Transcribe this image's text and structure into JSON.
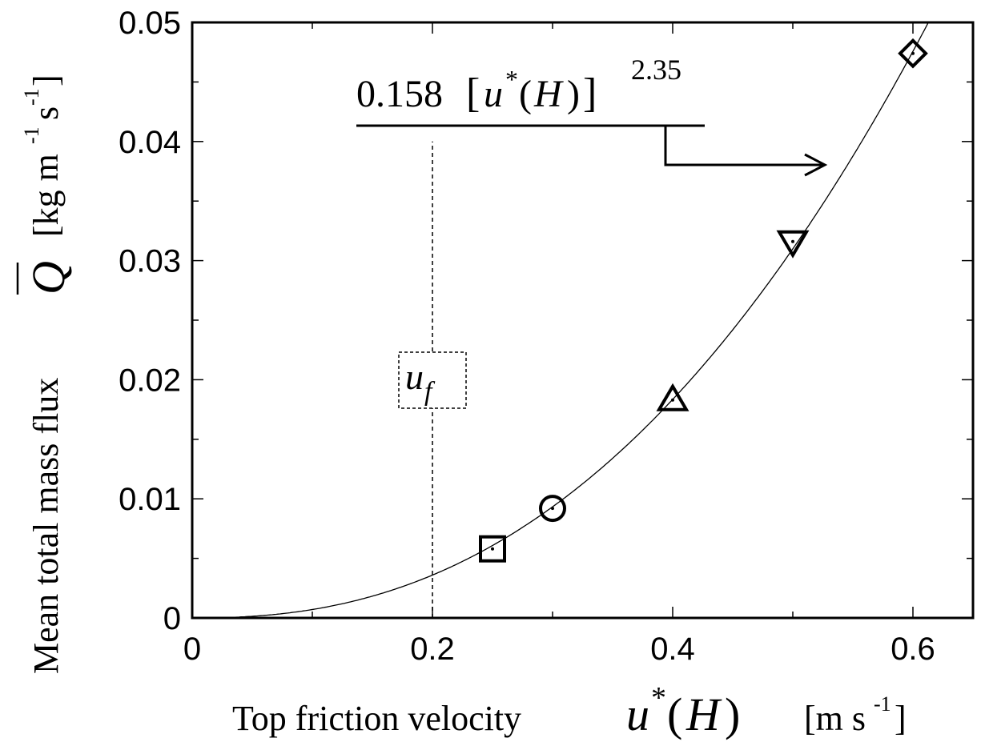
{
  "chart_data": {
    "type": "scatter",
    "xlabel": {
      "prefix": "Top friction velocity",
      "math": "u*(H)",
      "unit": "[m s-1]"
    },
    "ylabel": {
      "prefix": "Mean total mass flux",
      "math": "Q̄",
      "unit": "[kg m-1 s-1]"
    },
    "xlim": [
      0,
      0.65
    ],
    "ylim": [
      0,
      0.05
    ],
    "x_ticks": [
      0,
      0.2,
      0.4,
      0.6
    ],
    "x_tick_labels": [
      "0",
      "0.2",
      "0.4",
      "0.6"
    ],
    "y_ticks": [
      0,
      0.01,
      0.02,
      0.03,
      0.04,
      0.05
    ],
    "y_tick_labels": [
      "0",
      "0.01",
      "0.02",
      "0.03",
      "0.04",
      "0.05"
    ],
    "points": [
      {
        "x": 0.25,
        "y": 0.0058,
        "marker": "square"
      },
      {
        "x": 0.3,
        "y": 0.0092,
        "marker": "circle"
      },
      {
        "x": 0.4,
        "y": 0.0183,
        "marker": "triangle-up"
      },
      {
        "x": 0.5,
        "y": 0.0316,
        "marker": "triangle-down"
      },
      {
        "x": 0.6,
        "y": 0.0474,
        "marker": "diamond"
      }
    ],
    "fit": {
      "coefficient": 0.158,
      "exponent": 2.35,
      "label": "0.158 [u*(H)]^2.35"
    },
    "threshold": {
      "x": 0.2,
      "label": "u_f"
    },
    "grid": false
  }
}
